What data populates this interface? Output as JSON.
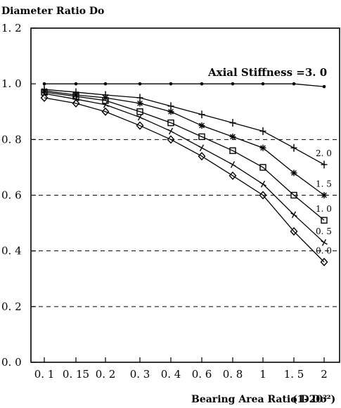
{
  "chart_data": {
    "type": "line",
    "ylabel": "Diameter Ratio Do",
    "xlabel": "Bearing Area Ratio D20²",
    "xlabel_suffix": "(1- Do²)",
    "annotation": "Axial Stiffness =3. 0",
    "y_ticks": [
      "0. 0",
      "0. 2",
      "0. 4",
      "0. 6",
      "0. 8",
      "1. 0",
      "1. 2"
    ],
    "ylim": [
      0,
      1.2
    ],
    "categories": [
      "0. 1",
      "0. 15",
      "0. 2",
      "0. 3",
      "0. 4",
      "0. 6",
      "0. 8",
      "1",
      "1. 5",
      "2"
    ],
    "dashed_gridlines_y": [
      0.2,
      0.4,
      0.6,
      0.8
    ],
    "series": [
      {
        "name": "3. 0",
        "marker": "dot",
        "values": [
          1.0,
          1.0,
          1.0,
          1.0,
          1.0,
          1.0,
          1.0,
          1.0,
          1.0,
          0.99
        ]
      },
      {
        "name": "2. 0",
        "marker": "plus",
        "values": [
          0.98,
          0.97,
          0.96,
          0.95,
          0.92,
          0.89,
          0.86,
          0.83,
          0.77,
          0.71
        ]
      },
      {
        "name": "1. 5",
        "marker": "asterisk",
        "values": [
          0.975,
          0.96,
          0.95,
          0.93,
          0.9,
          0.85,
          0.81,
          0.77,
          0.68,
          0.6
        ]
      },
      {
        "name": "1. 0",
        "marker": "square",
        "values": [
          0.97,
          0.955,
          0.94,
          0.9,
          0.86,
          0.81,
          0.76,
          0.7,
          0.6,
          0.51
        ]
      },
      {
        "name": "0. 5",
        "marker": "x",
        "values": [
          0.965,
          0.945,
          0.925,
          0.88,
          0.83,
          0.77,
          0.71,
          0.64,
          0.53,
          0.43
        ]
      },
      {
        "name": "0. 0",
        "marker": "diamond",
        "values": [
          0.95,
          0.93,
          0.9,
          0.85,
          0.8,
          0.74,
          0.67,
          0.6,
          0.47,
          0.36
        ]
      }
    ]
  }
}
